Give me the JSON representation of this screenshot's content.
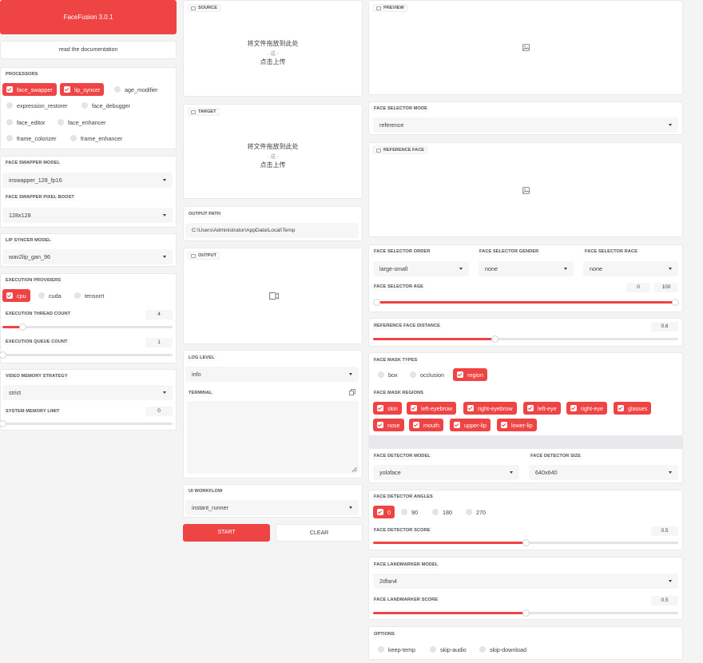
{
  "app": {
    "title": "FaceFusion 3.0.1",
    "docs_label": "read the documentation"
  },
  "processors": {
    "label": "PROCESSORS",
    "items": [
      {
        "label": "face_swapper",
        "checked": true
      },
      {
        "label": "lip_syncer",
        "checked": true
      },
      {
        "label": "age_modifier",
        "checked": false
      },
      {
        "label": "expression_restorer",
        "checked": false
      },
      {
        "label": "face_debugger",
        "checked": false
      },
      {
        "label": "face_editor",
        "checked": false
      },
      {
        "label": "face_enhancer",
        "checked": false
      },
      {
        "label": "frame_colorizer",
        "checked": false
      },
      {
        "label": "frame_enhancer",
        "checked": false
      }
    ]
  },
  "face_swapper": {
    "model_label": "FACE SWAPPER MODEL",
    "model": "inswapper_128_fp16",
    "boost_label": "FACE SWAPPER PIXEL BOOST",
    "boost": "128x128"
  },
  "lip_syncer": {
    "model_label": "LIP SYNCER MODEL",
    "model": "wav2lip_gan_96"
  },
  "execution": {
    "providers_label": "EXECUTION PROVIDERS",
    "providers": [
      {
        "label": "cpu",
        "checked": true
      },
      {
        "label": "cuda",
        "checked": false
      },
      {
        "label": "tensorrt",
        "checked": false
      }
    ],
    "thread_label": "EXECUTION THREAD COUNT",
    "thread_count": "4",
    "thread_fraction": 0.12,
    "queue_label": "EXECUTION QUEUE COUNT",
    "queue_count": "1",
    "queue_fraction": 0.0
  },
  "memory": {
    "strategy_label": "VIDEO MEMORY STRATEGY",
    "strategy": "strict",
    "limit_label": "SYSTEM MEMORY LIMIT",
    "limit": "0",
    "limit_fraction": 0.0
  },
  "source": {
    "label": "SOURCE",
    "drop_text": "将文件拖放到此处",
    "or_text": "- 或 -",
    "click_text": "点击上传"
  },
  "target": {
    "label": "TARGET",
    "drop_text": "将文件拖放到此处",
    "or_text": "- 或 -",
    "click_text": "点击上传"
  },
  "output_path": {
    "label": "OUTPUT PATH",
    "value": "C:\\Users\\Administrator\\AppData\\Local\\Temp"
  },
  "output": {
    "label": "OUTPUT"
  },
  "log": {
    "label": "LOG LEVEL",
    "value": "info"
  },
  "terminal": {
    "label": "TERMINAL"
  },
  "workflow": {
    "label": "UI WORKFLOW",
    "value": "instant_runner"
  },
  "actions": {
    "start": "START",
    "clear": "CLEAR"
  },
  "preview": {
    "label": "PREVIEW"
  },
  "face_selector": {
    "mode_label": "FACE SELECTOR MODE",
    "mode": "reference",
    "reference_label": "REFERENCE FACE",
    "order_label": "FACE SELECTOR ORDER",
    "order": "large-small",
    "gender_label": "FACE SELECTOR GENDER",
    "gender": "none",
    "race_label": "FACE SELECTOR RACE",
    "race": "none",
    "age_label": "FACE SELECTOR AGE",
    "age_min": "0",
    "age_max": "100",
    "age_min_fraction": 0.0,
    "age_max_fraction": 1.0
  },
  "reference_distance": {
    "label": "REFERENCE FACE DISTANCE",
    "value": "0.6",
    "fraction": 0.4
  },
  "face_mask": {
    "types_label": "FACE MASK TYPES",
    "types": [
      {
        "label": "box",
        "checked": false
      },
      {
        "label": "occlusion",
        "checked": false
      },
      {
        "label": "region",
        "checked": true
      }
    ],
    "regions_label": "FACE MASK REGIONS",
    "regions": [
      "skin",
      "left-eyebrow",
      "right-eyebrow",
      "left-eye",
      "right-eye",
      "glasses",
      "nose",
      "mouth",
      "upper-lip",
      "lower-lip"
    ]
  },
  "face_detector": {
    "model_label": "FACE DETECTOR MODEL",
    "model": "yoloface",
    "size_label": "FACE DETECTOR SIZE",
    "size": "640x640",
    "angles_label": "FACE DETECTOR ANGLES",
    "angles": [
      {
        "label": "0",
        "checked": true
      },
      {
        "label": "90",
        "checked": false
      },
      {
        "label": "180",
        "checked": false
      },
      {
        "label": "270",
        "checked": false
      }
    ],
    "score_label": "FACE DETECTOR SCORE",
    "score": "0.5",
    "score_fraction": 0.5
  },
  "face_landmarker": {
    "model_label": "FACE LANDMARKER MODEL",
    "model": "2dfan4",
    "score_label": "FACE LANDMARKER SCORE",
    "score": "0.5",
    "score_fraction": 0.5
  },
  "options": {
    "label": "OPTIONS",
    "items": [
      {
        "label": "keep-temp",
        "checked": false
      },
      {
        "label": "skip-audio",
        "checked": false
      },
      {
        "label": "skip-download",
        "checked": false
      }
    ]
  },
  "colors": {
    "accent": "#ef4444"
  }
}
